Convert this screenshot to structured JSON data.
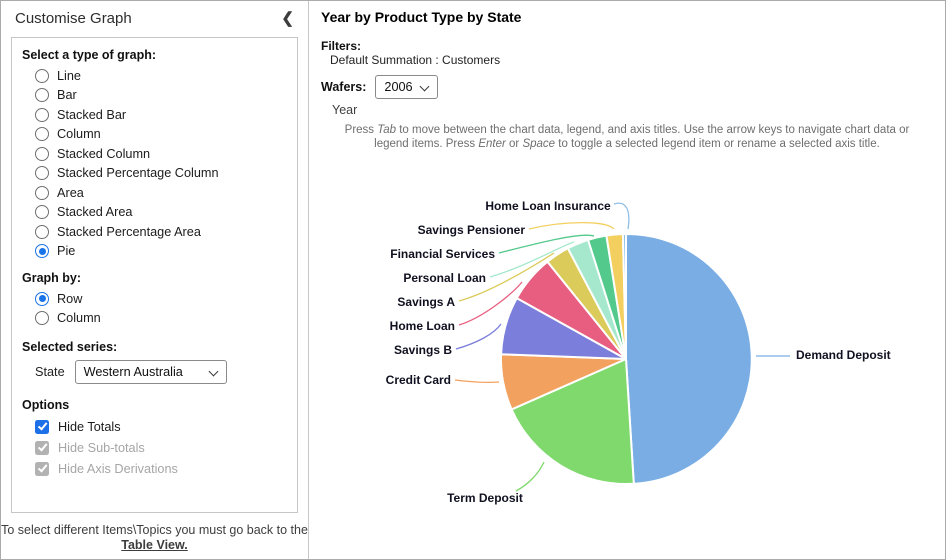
{
  "sidebar": {
    "title": "Customise Graph",
    "graph_type_label": "Select a type of graph:",
    "graph_types": [
      {
        "label": "Line",
        "selected": false
      },
      {
        "label": "Bar",
        "selected": false
      },
      {
        "label": "Stacked Bar",
        "selected": false
      },
      {
        "label": "Column",
        "selected": false
      },
      {
        "label": "Stacked Column",
        "selected": false
      },
      {
        "label": "Stacked Percentage Column",
        "selected": false
      },
      {
        "label": "Area",
        "selected": false
      },
      {
        "label": "Stacked Area",
        "selected": false
      },
      {
        "label": "Stacked Percentage Area",
        "selected": false
      },
      {
        "label": "Pie",
        "selected": true
      }
    ],
    "graph_by_label": "Graph by:",
    "graph_by": [
      {
        "label": "Row",
        "selected": true
      },
      {
        "label": "Column",
        "selected": false
      }
    ],
    "selected_series_label": "Selected series:",
    "series_field_label": "State",
    "series_value": "Western Australia",
    "options_label": "Options",
    "options": [
      {
        "label": "Hide Totals",
        "checked": true,
        "disabled": false
      },
      {
        "label": "Hide Sub-totals",
        "checked": true,
        "disabled": true
      },
      {
        "label": "Hide Axis Derivations",
        "checked": true,
        "disabled": true
      }
    ],
    "footer_text": "To select different Items\\Topics you must go back to the",
    "footer_link": "Table View."
  },
  "main": {
    "title": "Year by Product Type by State",
    "filters_label": "Filters:",
    "filters_value": "Default Summation : Customers",
    "wafers_label": "Wafers:",
    "wafers_value": "2006",
    "wafer_axis_label": "Year",
    "help_segments": [
      {
        "text": "Press "
      },
      {
        "text": "Tab",
        "italic": true
      },
      {
        "text": " to move between the chart data, legend, and axis titles. Use the arrow keys to navigate chart data or legend items. Press "
      },
      {
        "text": "Enter",
        "italic": true
      },
      {
        "text": " or "
      },
      {
        "text": "Space",
        "italic": true
      },
      {
        "text": " to toggle a selected legend item or rename a selected axis title."
      }
    ]
  },
  "chart_data": {
    "type": "pie",
    "title": "Year by Product Type by State",
    "wafer": "2006",
    "legend_position": "callout-labels",
    "start_angle_deg": 0,
    "direction": "clockwise",
    "slices": [
      {
        "label": "Demand Deposit",
        "value": 49.0,
        "color": "#79ADE4"
      },
      {
        "label": "Term Deposit",
        "value": 19.4,
        "color": "#7FD96D"
      },
      {
        "label": "Credit Card",
        "value": 7.2,
        "color": "#F2A25E"
      },
      {
        "label": "Savings B",
        "value": 7.5,
        "color": "#7B7EDB"
      },
      {
        "label": "Home Loan",
        "value": 6.1,
        "color": "#E85E80"
      },
      {
        "label": "Savings A",
        "value": 3.1,
        "color": "#DBCB5A"
      },
      {
        "label": "Personal Loan",
        "value": 2.8,
        "color": "#A5E8CD"
      },
      {
        "label": "Financial Services",
        "value": 2.4,
        "color": "#54C98C"
      },
      {
        "label": "Savings Pensioner",
        "value": 2.1,
        "color": "#F3CF5F"
      },
      {
        "label": "Home Loan Insurance",
        "value": 0.4,
        "color": "#8FBFE8"
      }
    ]
  }
}
